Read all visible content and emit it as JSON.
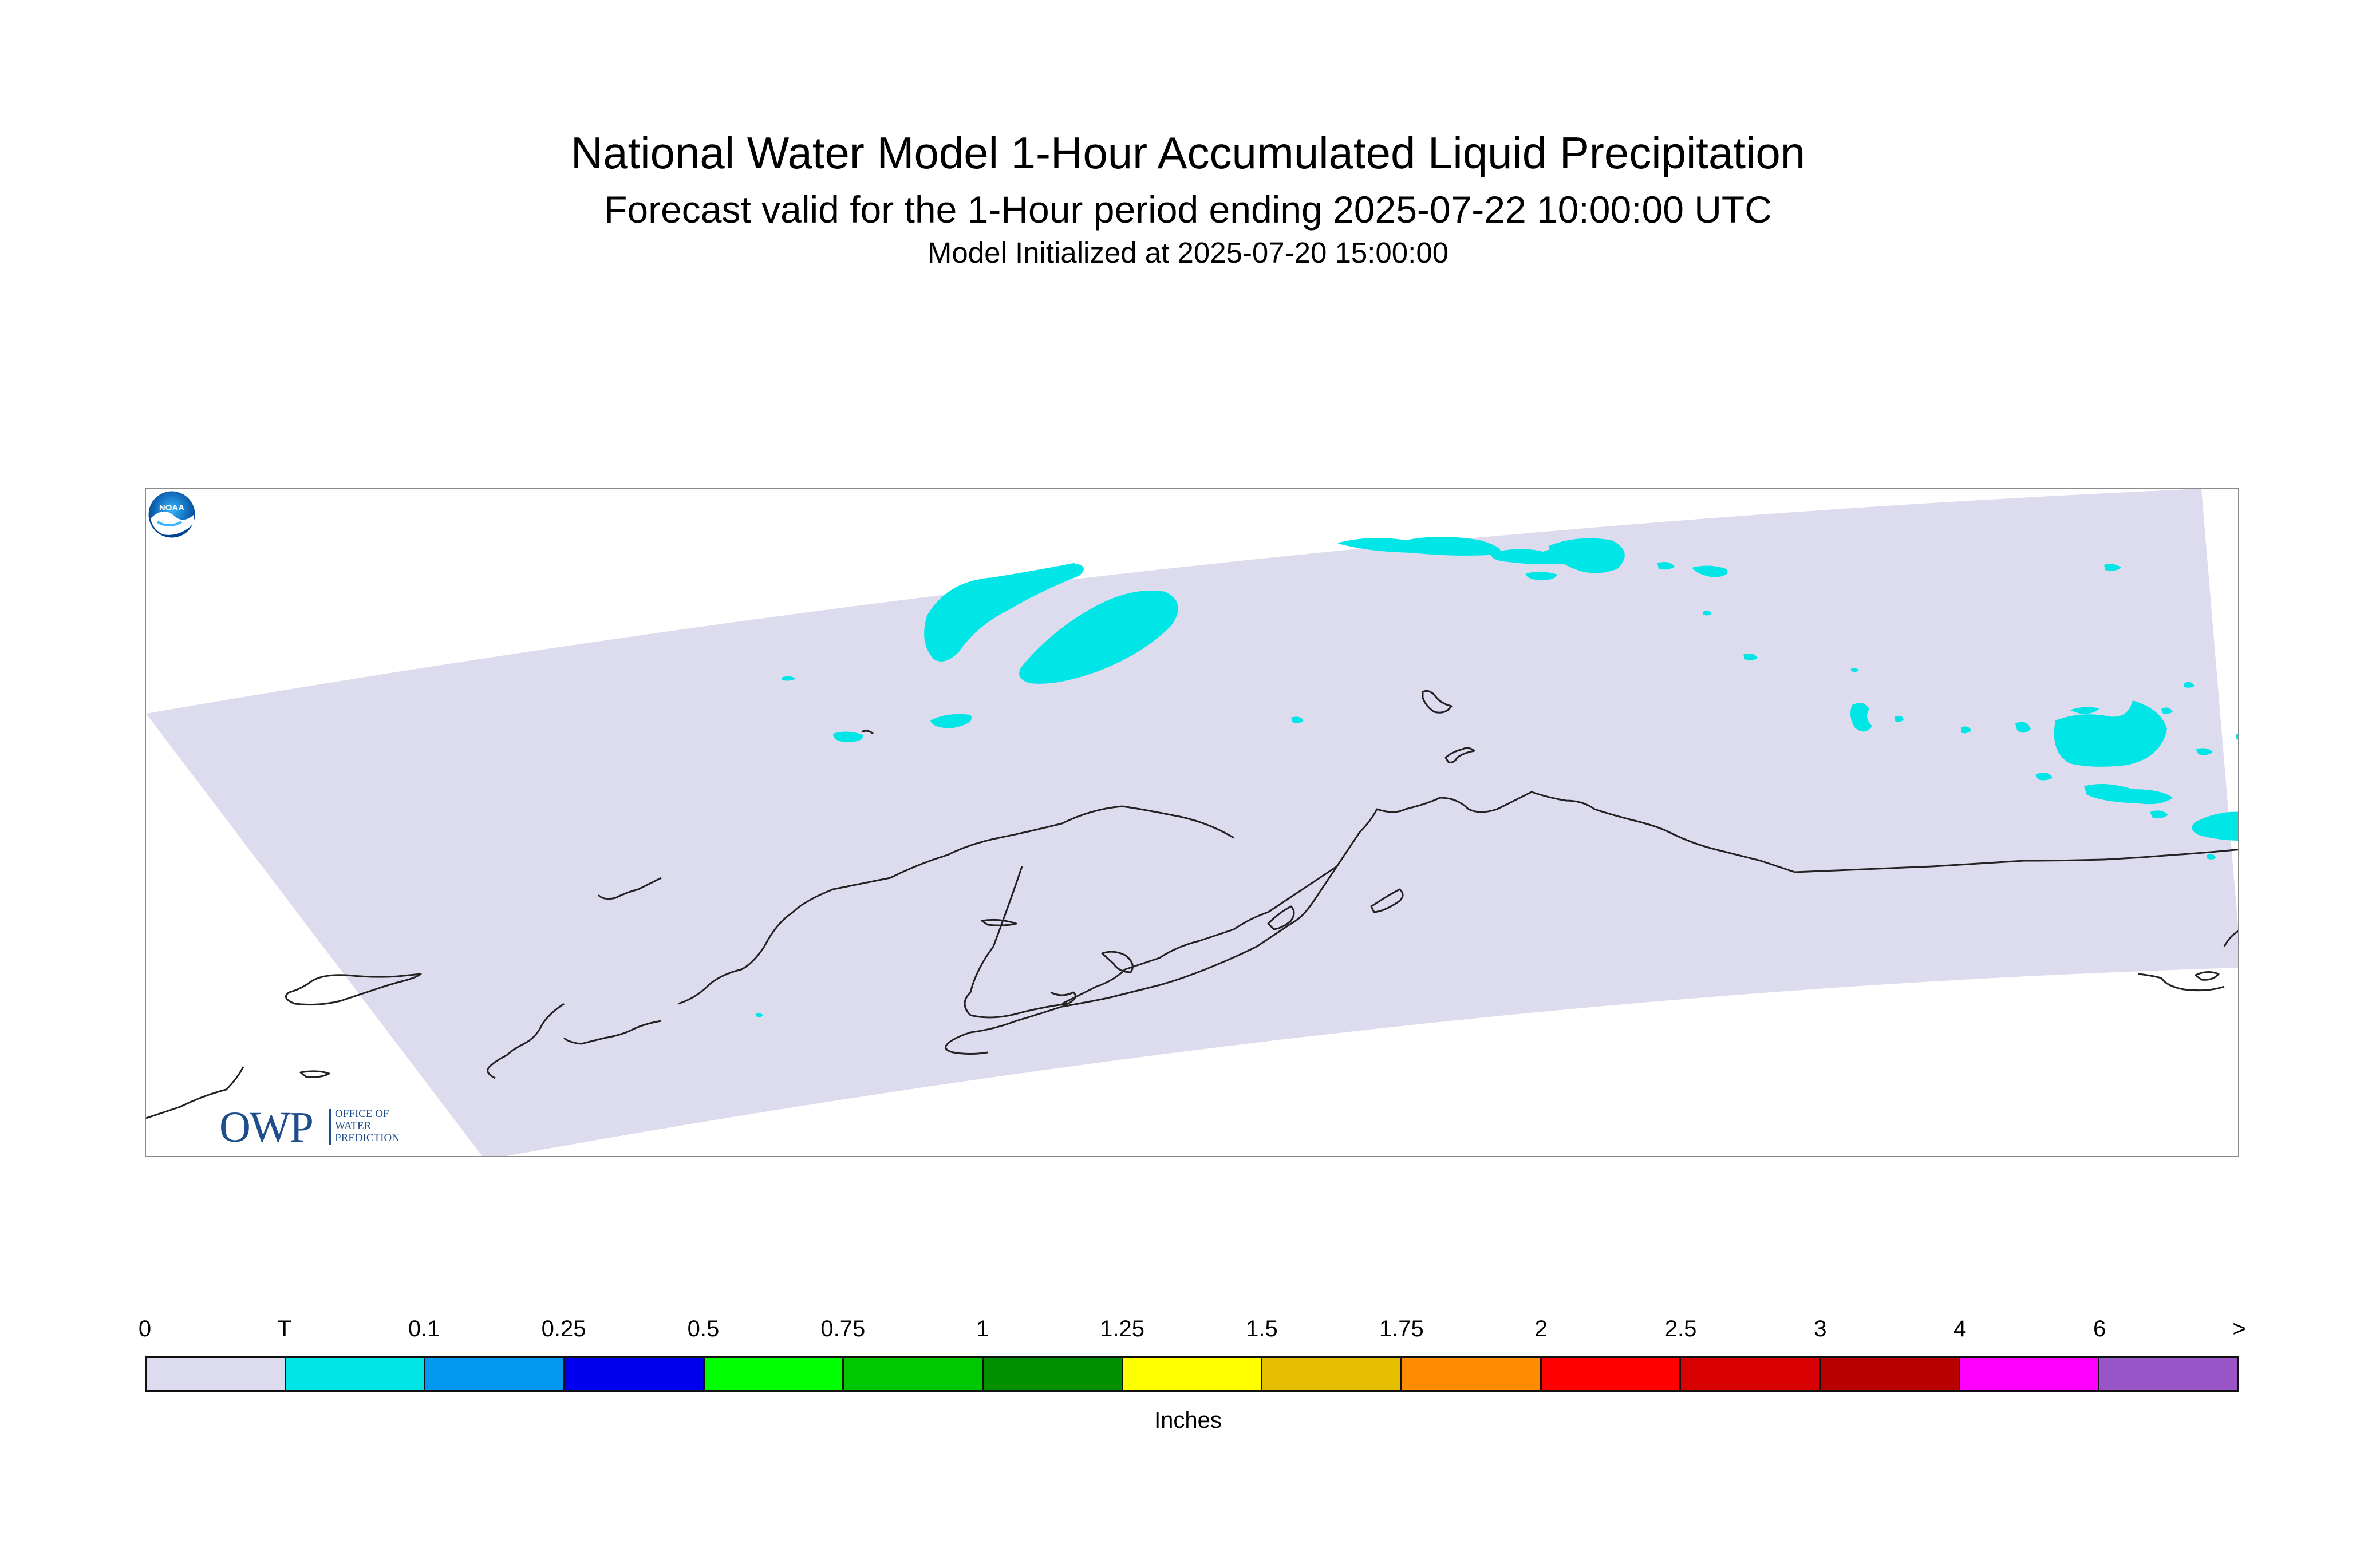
{
  "header": {
    "title": "National Water Model 1-Hour Accumulated Liquid Precipitation",
    "subtitle": "Forecast valid for the 1-Hour period ending 2025-07-22 10:00:00 UTC",
    "init_line": "Model Initialized at 2025-07-20 15:00:00"
  },
  "map": {
    "domain_fill_color": "#dcdcee",
    "precip_color_trace": "#00e5e5",
    "coastline_color": "#222222",
    "precip_category_shown": "T",
    "logos": {
      "left": {
        "icon": "owp-logo",
        "letters": "OWP",
        "words": [
          "OFFICE OF",
          "WATER",
          "PREDICTION"
        ]
      },
      "right": {
        "icon": "noaa-logo",
        "text": "NOAA"
      }
    }
  },
  "legend": {
    "units": "Inches",
    "boundaries": [
      "0",
      "T",
      "0.1",
      "0.25",
      "0.5",
      "0.75",
      "1",
      "1.25",
      "1.5",
      "1.75",
      "2",
      "2.5",
      "3",
      "4",
      "6",
      ">"
    ],
    "colors": [
      "#dcdcee",
      "#00e5e5",
      "#0098f0",
      "#0000ee",
      "#00ff00",
      "#00c800",
      "#009000",
      "#ffff00",
      "#e6be00",
      "#ff8c00",
      "#ff0000",
      "#d80000",
      "#b80000",
      "#ff00ff",
      "#9955c8"
    ]
  }
}
